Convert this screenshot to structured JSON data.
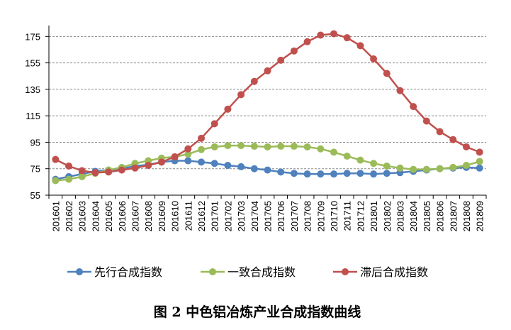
{
  "chart_data": {
    "type": "line",
    "caption": "图 2 中色铝冶炼产业合成指数曲线",
    "x": [
      "201601",
      "201602",
      "201603",
      "201604",
      "201605",
      "201606",
      "201607",
      "201608",
      "201609",
      "201610",
      "201611",
      "201612",
      "201701",
      "201702",
      "201703",
      "201704",
      "201705",
      "201706",
      "201707",
      "201708",
      "201709",
      "201710",
      "201711",
      "201712",
      "201801",
      "201802",
      "201803",
      "201804",
      "201805",
      "201806",
      "201807",
      "201808",
      "201809"
    ],
    "y_ticks": [
      55,
      75,
      95,
      115,
      135,
      155,
      175
    ],
    "ylim": [
      55,
      180
    ],
    "grid": "horizontal-dashed",
    "legend_position": "bottom",
    "series": [
      {
        "name": "先行合成指数",
        "color": "#4F81BD",
        "values": [
          67,
          69,
          71,
          73,
          74,
          75,
          77,
          78,
          80,
          81,
          81,
          80,
          79,
          77.5,
          76.5,
          75,
          74,
          72.5,
          71.5,
          71,
          71,
          71,
          71.5,
          71.5,
          71,
          71.5,
          72,
          73,
          74,
          75,
          75.5,
          76,
          75.5
        ]
      },
      {
        "name": "一致合成指数",
        "color": "#9BBB59",
        "values": [
          66,
          67,
          69,
          71.5,
          74,
          76,
          79,
          81,
          83,
          84,
          86,
          89.5,
          91.5,
          92.5,
          92.5,
          92,
          91.5,
          92,
          92,
          91.5,
          90,
          87.5,
          84.5,
          81.5,
          79,
          77,
          75.5,
          74.5,
          74.5,
          75,
          76,
          77.5,
          80.5
        ]
      },
      {
        "name": "滞后合成指数",
        "color": "#C0504D",
        "values": [
          82,
          77,
          73.5,
          72,
          72.5,
          74,
          75.5,
          77.5,
          80,
          84,
          90,
          98,
          109,
          120,
          131,
          141,
          149,
          157,
          164,
          171,
          176,
          177,
          174,
          168,
          158,
          147,
          134,
          122,
          111,
          103,
          97,
          91.5,
          87.5
        ]
      }
    ]
  }
}
